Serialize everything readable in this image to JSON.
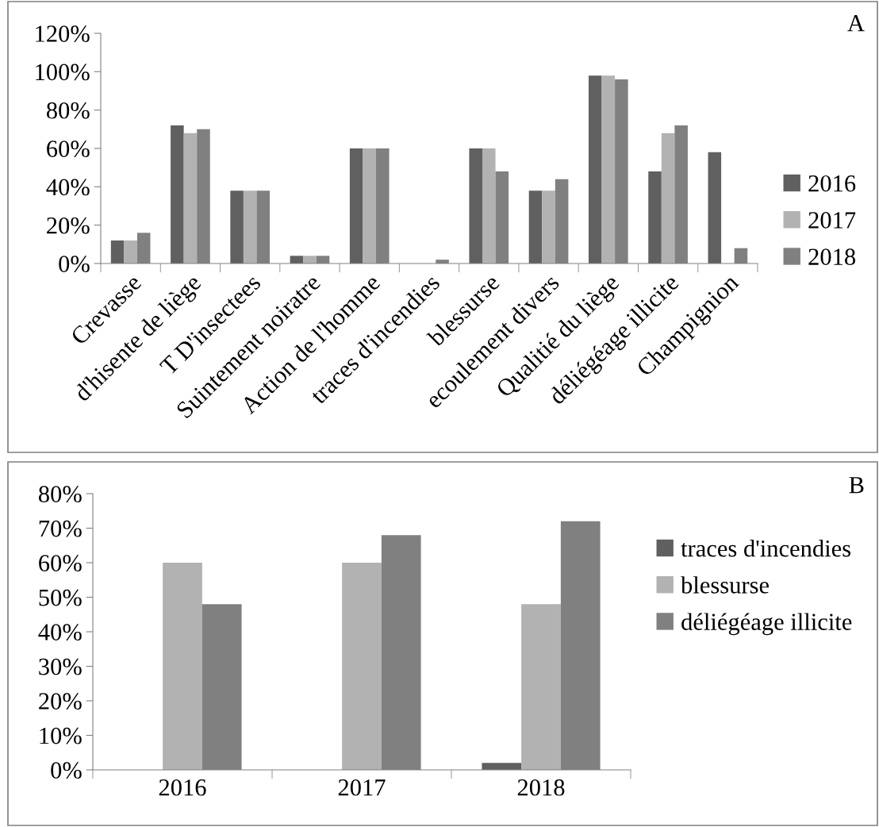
{
  "chart_data": [
    {
      "type": "bar",
      "annotations": [
        "A"
      ],
      "categories": [
        "Crevasse",
        "d'hisente de liège",
        "T D'insectees",
        "Suintement noiratre",
        "Action de l'homme",
        "traces d'incendies",
        "blessurse",
        "ecoulement divers",
        "Qualitié du liège",
        "déliégéage illicite",
        "Champignion"
      ],
      "series": [
        {
          "name": "2016",
          "color": "#606060",
          "values": [
            12,
            72,
            38,
            4,
            60,
            0,
            60,
            38,
            98,
            48,
            58
          ]
        },
        {
          "name": "2017",
          "color": "#b2b2b2",
          "values": [
            12,
            68,
            38,
            4,
            60,
            0,
            60,
            38,
            98,
            68,
            0
          ]
        },
        {
          "name": "2018",
          "color": "#808080",
          "values": [
            16,
            70,
            38,
            4,
            60,
            2,
            48,
            44,
            96,
            72,
            8
          ]
        }
      ],
      "ylim": [
        0,
        120
      ],
      "yticks": [
        {
          "value": 0,
          "label": "0%"
        },
        {
          "value": 20,
          "label": "20%"
        },
        {
          "value": 40,
          "label": "40%"
        },
        {
          "value": 60,
          "label": "60%"
        },
        {
          "value": 80,
          "label": "80%"
        },
        {
          "value": 100,
          "label": "100%"
        },
        {
          "value": 120,
          "label": "120%"
        }
      ],
      "grid": false,
      "legend": "right"
    },
    {
      "type": "bar",
      "annotations": [
        "B"
      ],
      "categories": [
        "2016",
        "2017",
        "2018"
      ],
      "series": [
        {
          "name": "traces d'incendies",
          "color": "#606060",
          "values": [
            0,
            0,
            2
          ]
        },
        {
          "name": "blessurse",
          "color": "#b2b2b2",
          "values": [
            60,
            60,
            48
          ]
        },
        {
          "name": "déliégéage illicite",
          "color": "#808080",
          "values": [
            48,
            68,
            72
          ]
        }
      ],
      "ylim": [
        0,
        80
      ],
      "yticks": [
        {
          "value": 0,
          "label": "0%"
        },
        {
          "value": 10,
          "label": "10%"
        },
        {
          "value": 20,
          "label": "20%"
        },
        {
          "value": 30,
          "label": "30%"
        },
        {
          "value": 40,
          "label": "40%"
        },
        {
          "value": 50,
          "label": "50%"
        },
        {
          "value": 60,
          "label": "60%"
        },
        {
          "value": 70,
          "label": "70%"
        },
        {
          "value": 80,
          "label": "80%"
        }
      ],
      "grid": false,
      "legend": "right"
    }
  ]
}
